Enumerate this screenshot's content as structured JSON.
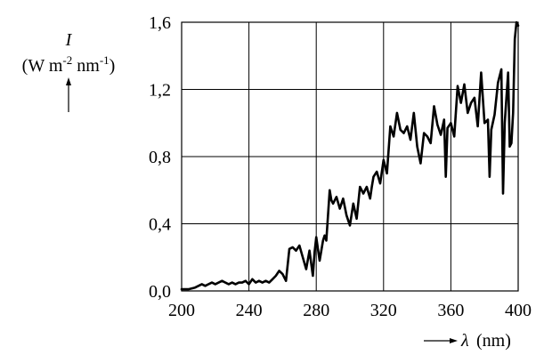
{
  "chart_data": {
    "type": "line",
    "title": "",
    "ylabel": {
      "symbol": "I",
      "unit_open": "(W m",
      "unit_exp1": "-2",
      "unit_mid": " nm",
      "unit_exp2": "-1",
      "unit_close": ")"
    },
    "xlabel": {
      "symbol": "λ",
      "unit": "(nm)"
    },
    "xlim": [
      200,
      400
    ],
    "ylim": [
      0,
      1.6
    ],
    "xticks": [
      200,
      240,
      280,
      320,
      360,
      400
    ],
    "yticks": [
      0,
      0.4,
      0.8,
      1.2,
      1.6
    ],
    "yticklabels": [
      "0,0",
      "0,4",
      "0,8",
      "1,2",
      "1,6"
    ],
    "xticklabels": [
      "200",
      "240",
      "280",
      "320",
      "360",
      "400"
    ],
    "grid": true,
    "series": [
      {
        "x": [
          200,
          204,
          208,
          210,
          212,
          214,
          216,
          218,
          220,
          222,
          224,
          226,
          228,
          230,
          232,
          234,
          236,
          238,
          240,
          242,
          244,
          246,
          248,
          250,
          252,
          254,
          256,
          258,
          260,
          262,
          264,
          266,
          268,
          270,
          272,
          274,
          276,
          278,
          279,
          280,
          282,
          284,
          285,
          286,
          288,
          289,
          290,
          292,
          294,
          296,
          298,
          300,
          302,
          304,
          306,
          308,
          310,
          312,
          313,
          314,
          316,
          318,
          320,
          322,
          324,
          326,
          328,
          330,
          332,
          334,
          336,
          338,
          340,
          342,
          344,
          346,
          348,
          350,
          352,
          354,
          356,
          357,
          358,
          360,
          362,
          364,
          366,
          368,
          370,
          372,
          374,
          376,
          378,
          380,
          382,
          383,
          384,
          386,
          388,
          390,
          391,
          392,
          394,
          395,
          396,
          397,
          398,
          399,
          400
        ],
        "y": [
          0.01,
          0.01,
          0.02,
          0.03,
          0.04,
          0.03,
          0.04,
          0.05,
          0.04,
          0.05,
          0.06,
          0.05,
          0.04,
          0.05,
          0.04,
          0.05,
          0.05,
          0.06,
          0.04,
          0.07,
          0.05,
          0.06,
          0.05,
          0.06,
          0.05,
          0.07,
          0.09,
          0.12,
          0.1,
          0.06,
          0.25,
          0.26,
          0.24,
          0.27,
          0.2,
          0.13,
          0.24,
          0.09,
          0.23,
          0.32,
          0.18,
          0.3,
          0.33,
          0.3,
          0.6,
          0.54,
          0.52,
          0.56,
          0.49,
          0.55,
          0.45,
          0.39,
          0.52,
          0.43,
          0.62,
          0.58,
          0.62,
          0.55,
          0.62,
          0.68,
          0.71,
          0.64,
          0.78,
          0.7,
          0.98,
          0.92,
          1.06,
          0.96,
          0.94,
          0.98,
          0.9,
          1.06,
          0.86,
          0.76,
          0.94,
          0.92,
          0.88,
          1.1,
          0.99,
          0.93,
          1.02,
          0.68,
          0.97,
          1.0,
          0.92,
          1.22,
          1.12,
          1.23,
          1.06,
          1.12,
          1.15,
          0.98,
          1.3,
          1.0,
          1.02,
          0.68,
          0.96,
          1.05,
          1.24,
          1.32,
          0.58,
          1.0,
          1.3,
          0.86,
          0.88,
          1.06,
          1.5,
          1.6,
          1.58
        ]
      }
    ]
  }
}
